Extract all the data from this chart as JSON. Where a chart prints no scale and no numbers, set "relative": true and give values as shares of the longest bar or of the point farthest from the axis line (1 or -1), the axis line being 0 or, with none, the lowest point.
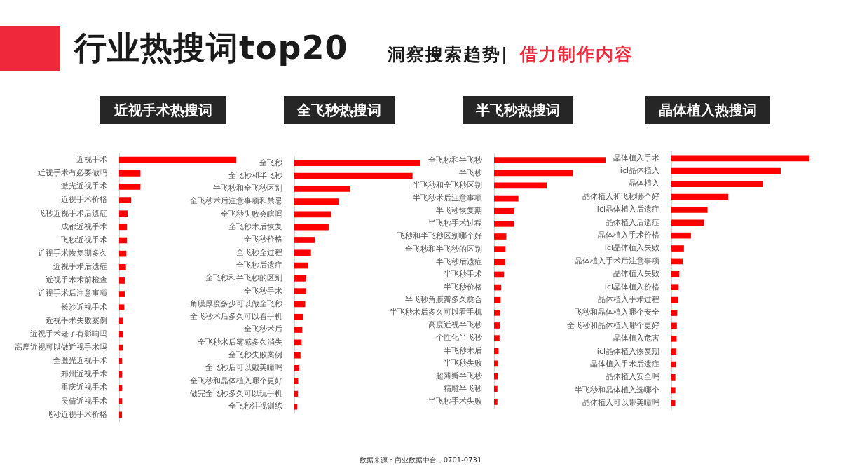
{
  "chart_data": [
    {
      "type": "other",
      "title": "行业热搜词top20",
      "subtitle": "洞察搜索趋势|",
      "annotations": [
        "借力制作内容",
        "数据来源：商业数据中台，0701-0731"
      ]
    },
    {
      "type": "bar",
      "orientation": "horizontal",
      "relative": true,
      "title": "近视手术热搜词",
      "color": "#ff0000",
      "categories": [
        "近视手术",
        "近视手术有必要做吗",
        "激光近视手术",
        "近视手术价格",
        "飞秒近视手术后遗症",
        "成都近视手术",
        "飞秒近视手术",
        "近视手术恢复期多久",
        "近视手术后遗症",
        "近视手术术前检查",
        "近视手术后注意事项",
        "长沙近视手术",
        "近视手术失败案例",
        "近视手术老了有影响吗",
        "高度近视可以做近视手术吗",
        "全激光近视手术",
        "郑州近视手术",
        "重庆近视手术",
        "吴倩近视手术",
        "飞秒近视手术价格"
      ],
      "values": [
        1,
        0.18,
        0.18,
        0.1,
        0.07,
        0.064,
        0.064,
        0.06,
        0.056,
        0.048,
        0.046,
        0.042,
        0.032,
        0.03,
        0.028,
        0.024,
        0.024,
        0.024,
        0.024,
        0.022
      ]
    },
    {
      "type": "bar",
      "orientation": "horizontal",
      "relative": true,
      "title": "全飞秒热搜词",
      "color": "#ff0000",
      "categories": [
        "全飞秒",
        "全飞秒和半飞秒",
        "半飞秒和全飞秒区别",
        "全飞秒术后注意事项和禁忌",
        "全飞秒失败会瞎吗",
        "全飞秒术后恢复",
        "全飞秒价格",
        "全飞秒全过程",
        "全飞秒后遗症",
        "全飞秒和半飞秒的区别",
        "全飞秒手术",
        "角膜厚度多少可以做全飞秒",
        "全飞秒术后多久可以看手机",
        "全飞秒术后",
        "全飞秒术后雾感多久消失",
        "全飞秒失败案例",
        "全飞秒后可以戴美瞳吗",
        "全飞秒和晶体植入哪个更好",
        "做完全飞秒多久可以玩手机",
        "全飞秒注视训练"
      ],
      "values": [
        1,
        0.935,
        0.44,
        0.35,
        0.29,
        0.27,
        0.16,
        0.13,
        0.108,
        0.091,
        0.091,
        0.084,
        0.067,
        0.061,
        0.056,
        0.047,
        0.037,
        0.028,
        0.026,
        0.022
      ]
    },
    {
      "type": "bar",
      "orientation": "horizontal",
      "relative": true,
      "title": "半飞秒热搜词",
      "color": "#ff0000",
      "categories": [
        "全飞秒和半飞秒",
        "半飞秒",
        "半飞秒和全飞秒区别",
        "半飞秒术后注意事项",
        "半飞秒恢复期",
        "半飞秒手术过程",
        "飞秒和半飞秒区别哪个好",
        "全飞秒和半飞秒的区别",
        "半飞秒后遗症",
        "半飞秒手术",
        "半飞秒价格",
        "半飞秒角膜瓣多久愈合",
        "半飞秒术后多久可以看手机",
        "高度近视半飞秒",
        "个性化半飞秒",
        "半飞秒术后",
        "半飞秒失败",
        "超薄瓣半飞秒",
        "精雕半飞秒",
        "半飞秒手术失败"
      ],
      "values": [
        1,
        0.705,
        0.47,
        0.216,
        0.18,
        0.176,
        0.108,
        0.1,
        0.097,
        0.087,
        0.061,
        0.057,
        0.051,
        0.049,
        0.047,
        0.038,
        0.032,
        0.03,
        0.028,
        0.028
      ]
    },
    {
      "type": "bar",
      "orientation": "horizontal",
      "relative": true,
      "title": "晶体植入热搜词",
      "color": "#ff0000",
      "categories": [
        "晶体植入手术",
        "icl晶体植入",
        "晶体植入",
        "晶体植入和飞秒哪个好",
        "icl晶体植入后遗症",
        "晶体植入后遗症",
        "晶体植入手术价格",
        "icl晶体植入失败",
        "晶体植入手术后注意事项",
        "晶体植入失败",
        "icl晶体植入价格",
        "晶体植入手术过程",
        "飞秒和晶体植入哪个安全",
        "全飞秒和晶体植入哪个更好",
        "晶体植入危害",
        "icl晶体植入恢复期",
        "晶体植入手术后遗症",
        "晶体植入安全吗",
        "半飞秒和晶体植入选哪个",
        "晶体植入可以带美瞳吗"
      ],
      "values": [
        1,
        0.79,
        0.66,
        0.41,
        0.26,
        0.234,
        0.14,
        0.089,
        0.08,
        0.055,
        0.051,
        0.048,
        0.041,
        0.038,
        0.036,
        0.034,
        0.031,
        0.027,
        0.027,
        0.026
      ]
    }
  ]
}
